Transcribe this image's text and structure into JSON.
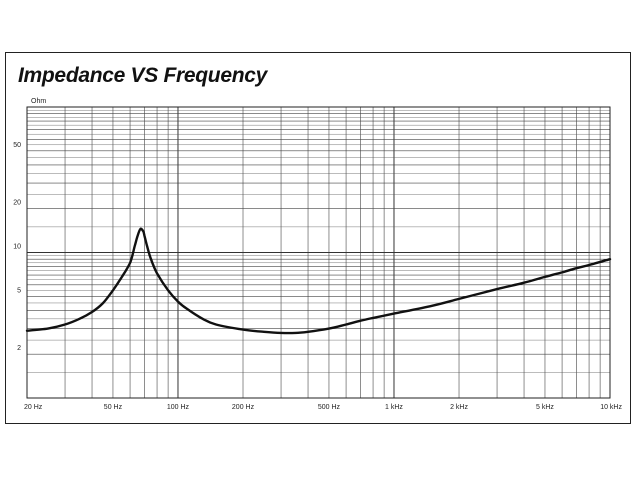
{
  "chart_data": {
    "type": "line",
    "title": "Impedance VS Frequency",
    "ylabel": "Ohm",
    "xlabel": "",
    "x_scale": "log",
    "y_scale": "log",
    "xlim": [
      20,
      10000
    ],
    "ylim": [
      1,
      100
    ],
    "grid": true,
    "x_ticks": [
      {
        "value": 20,
        "label": "20 Hz"
      },
      {
        "value": 50,
        "label": "50 Hz"
      },
      {
        "value": 100,
        "label": "100 Hz"
      },
      {
        "value": 200,
        "label": "200 Hz"
      },
      {
        "value": 500,
        "label": "500 Hz"
      },
      {
        "value": 1000,
        "label": "1 kHz"
      },
      {
        "value": 2000,
        "label": "2 kHz"
      },
      {
        "value": 5000,
        "label": "5 kHz"
      },
      {
        "value": 10000,
        "label": "10 kHz"
      }
    ],
    "y_ticks": [
      {
        "value": 2,
        "label": "2"
      },
      {
        "value": 5,
        "label": "5"
      },
      {
        "value": 10,
        "label": "10"
      },
      {
        "value": 20,
        "label": "20"
      },
      {
        "value": 50,
        "label": "50"
      }
    ],
    "series": [
      {
        "color": "#111111",
        "x": [
          20,
          25,
          30,
          35,
          40,
          45,
          50,
          55,
          60,
          63,
          65,
          67,
          69,
          70,
          72,
          75,
          80,
          90,
          100,
          110,
          130,
          150,
          200,
          250,
          300,
          350,
          400,
          500,
          600,
          700,
          800,
          1000,
          1500,
          2000,
          3000,
          4000,
          5000,
          6000,
          7000,
          8000,
          10000
        ],
        "y": [
          2.9,
          3.0,
          3.2,
          3.5,
          3.9,
          4.5,
          5.5,
          6.8,
          8.5,
          11.0,
          13.0,
          14.5,
          14.0,
          13.0,
          11.0,
          9.0,
          7.2,
          5.5,
          4.6,
          4.1,
          3.5,
          3.2,
          2.95,
          2.85,
          2.8,
          2.8,
          2.85,
          3.0,
          3.2,
          3.4,
          3.55,
          3.8,
          4.3,
          4.8,
          5.6,
          6.2,
          6.8,
          7.3,
          7.8,
          8.2,
          9.0
        ]
      }
    ]
  }
}
